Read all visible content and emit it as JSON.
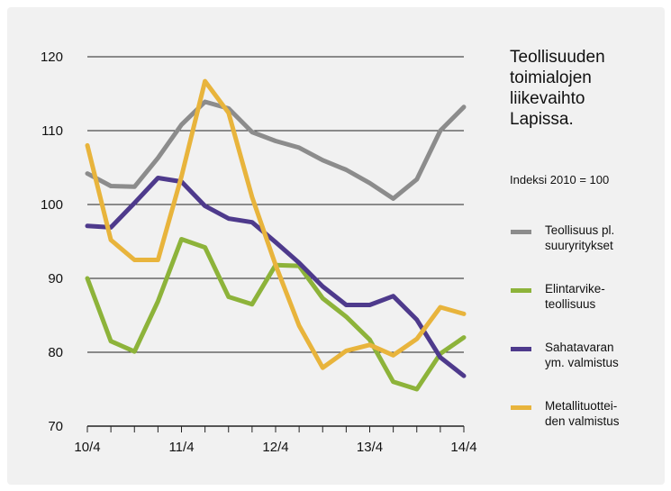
{
  "chart_data": {
    "type": "line",
    "title_lines": [
      "Teollisuuden",
      "toimialojen",
      "liikevaihto",
      "Lapissa."
    ],
    "subtitle": "Indeksi 2010 = 100",
    "x_ticks": [
      "10/4",
      "11/4",
      "12/4",
      "13/4",
      "14/4"
    ],
    "x_period_count": 17,
    "ylim": [
      70,
      120
    ],
    "y_ticks": [
      120,
      110,
      100,
      90,
      80,
      70
    ],
    "grid": true,
    "legend_position": "right",
    "series": [
      {
        "name": "Teollisuus pl. suuryritykset",
        "name_lines": [
          "Teollisuus pl.",
          "suuryritykset"
        ],
        "color": "#8c8c8c",
        "values": [
          104.2,
          102.5,
          102.4,
          106.3,
          110.8,
          113.9,
          113.0,
          109.8,
          108.6,
          107.7,
          106.0,
          104.7,
          102.9,
          100.8,
          103.4,
          110.0,
          113.2
        ]
      },
      {
        "name": "Elintarviketeollisuus",
        "name_lines": [
          "Elintarvike-",
          "teollisuus"
        ],
        "color": "#8db33a",
        "values": [
          90.0,
          81.5,
          80.1,
          86.9,
          95.3,
          94.2,
          87.5,
          86.5,
          91.8,
          91.7,
          87.3,
          84.8,
          81.7,
          76.0,
          75.0,
          79.8,
          82.0
        ]
      },
      {
        "name": "Sahatavaran ym. valmistus",
        "name_lines": [
          "Sahatavaran",
          "ym. valmistus"
        ],
        "color": "#4e3a8c",
        "values": [
          97.1,
          96.9,
          100.2,
          103.6,
          103.1,
          99.8,
          98.1,
          97.6,
          94.9,
          92.1,
          88.9,
          86.4,
          86.4,
          87.6,
          84.4,
          79.3,
          76.8
        ]
      },
      {
        "name": "Metallituotteiden valmistus",
        "name_lines": [
          "Metallituottei-",
          "den valmistus"
        ],
        "color": "#e8b43c",
        "values": [
          108.0,
          95.2,
          92.5,
          92.5,
          103.8,
          116.7,
          112.4,
          101.0,
          91.8,
          83.6,
          77.9,
          80.2,
          81.0,
          79.6,
          81.8,
          86.1,
          85.2
        ]
      }
    ]
  }
}
